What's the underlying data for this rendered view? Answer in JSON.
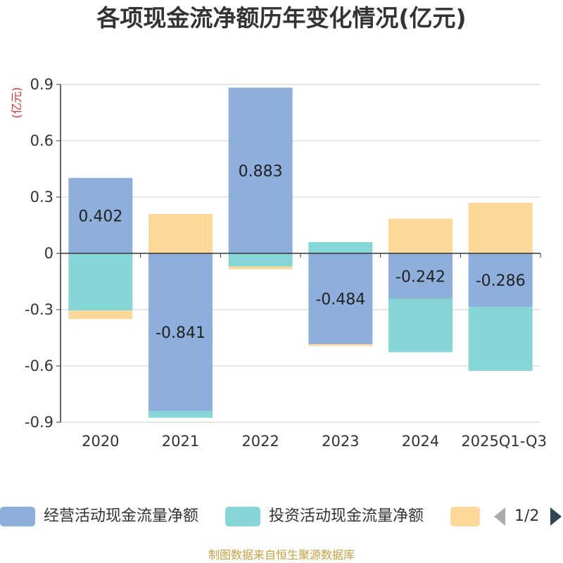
{
  "chart_data": {
    "type": "bar",
    "stacked": true,
    "title": "各项现金流净额历年变化情况(亿元)",
    "ylabel": "(亿元)",
    "ylim": [
      -0.9,
      0.9
    ],
    "yticks": [
      0.9,
      0.6,
      0.3,
      0,
      -0.3,
      -0.6,
      -0.9
    ],
    "ytick_labels": [
      "0.9",
      "0.6",
      "0.3",
      "0",
      "-0.3",
      "-0.6",
      "-0.9"
    ],
    "categories": [
      "2020",
      "2021",
      "2022",
      "2023",
      "2024",
      "2025Q1-Q3"
    ],
    "series": [
      {
        "name": "经营活动现金流量净额",
        "color": "#8eaedb",
        "values": [
          0.402,
          -0.841,
          0.883,
          -0.484,
          -0.242,
          -0.286
        ],
        "labels": [
          "0.402",
          "-0.841",
          "0.883",
          "-0.484",
          "-0.242",
          "-0.286"
        ]
      },
      {
        "name": "投资活动现金流量净额",
        "color": "#86d5d7",
        "values": [
          -0.305,
          -0.035,
          -0.07,
          0.06,
          -0.285,
          -0.34
        ]
      },
      {
        "name": "",
        "color": "#fed899",
        "values": [
          -0.045,
          0.21,
          -0.015,
          -0.01,
          0.185,
          0.27
        ]
      }
    ],
    "legend": {
      "position": "bottom",
      "page": "1/2"
    },
    "grid": true
  },
  "source_note": "制图数据来自恒生聚源数据库"
}
